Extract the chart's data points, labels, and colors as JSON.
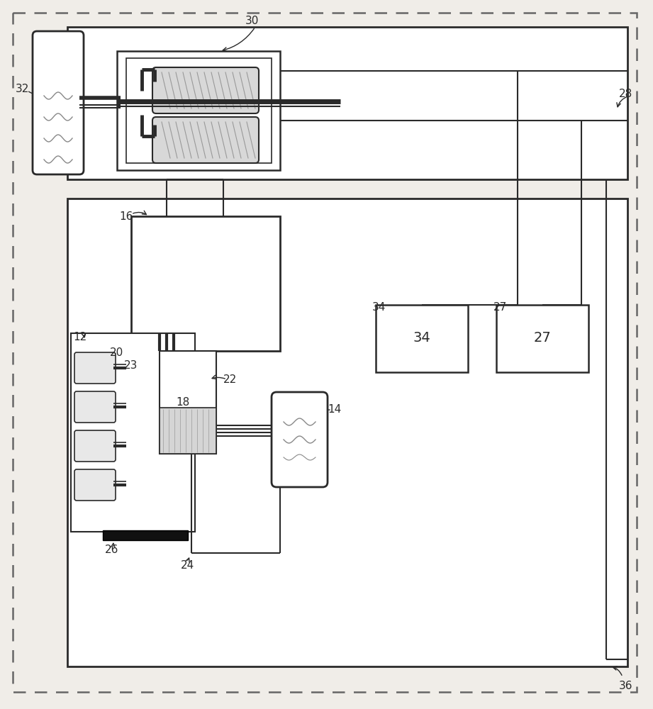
{
  "bg_color": "#f0ede8",
  "lc": "#2a2a2a",
  "gray": "#888888",
  "lgray": "#cccccc",
  "dgray": "#555555",
  "hatch_gray": "#aaaaaa",
  "figsize": [
    9.21,
    10.0
  ],
  "dpi": 100
}
